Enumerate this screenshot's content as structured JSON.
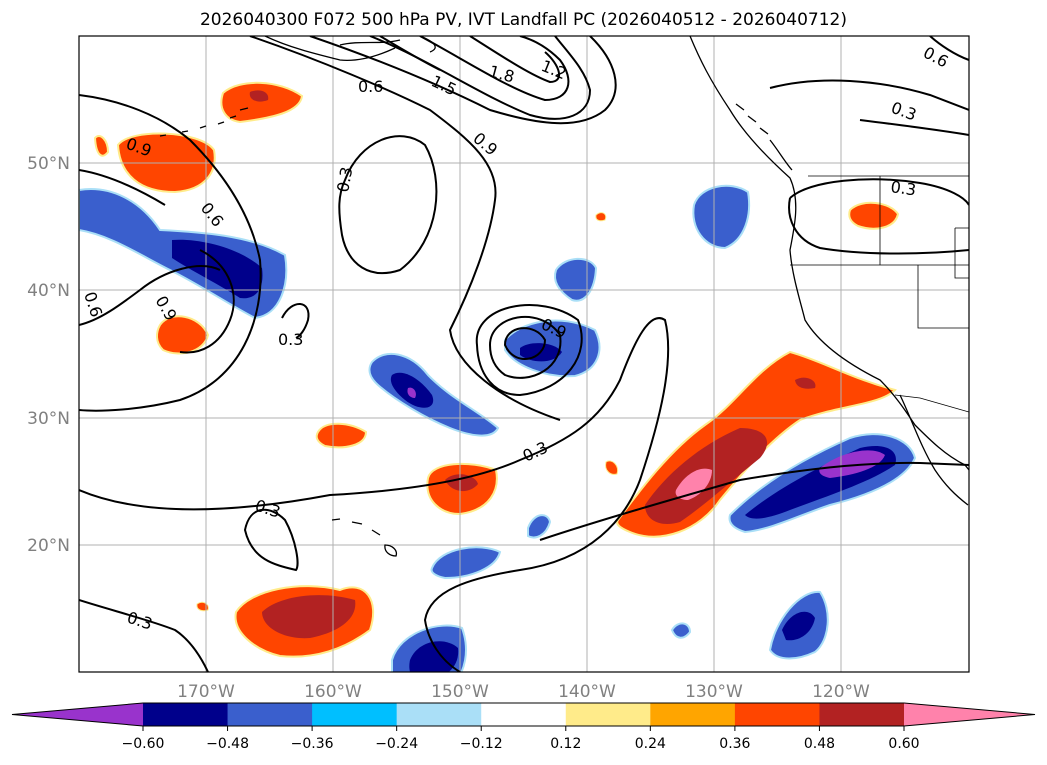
{
  "title": "2026040300 F072 500 hPa PV, IVT Landfall PC (2026040512 - 2026040712)",
  "map": {
    "latitude_labels": [
      "20°N",
      "30°N",
      "40°N",
      "50°N"
    ],
    "longitude_labels": [
      "170°W",
      "160°W",
      "150°W",
      "140°W",
      "130°W",
      "120°W"
    ],
    "contour_labels": [
      "0.9",
      "0.6",
      "1.5",
      "1.8",
      "1.2",
      "0.6",
      "0.9",
      "0.3",
      "0.6",
      "0.3",
      "0.6",
      "0.9",
      "0.3",
      "0.9",
      "0.3",
      "0.3",
      "0.3",
      "0.3"
    ],
    "contour_color": "#000000",
    "grid_color": "#b0b0b0"
  },
  "colorbar": {
    "ticks": [
      "−0.60",
      "−0.48",
      "−0.36",
      "−0.24",
      "−0.12",
      "0.12",
      "0.24",
      "0.36",
      "0.48",
      "0.60"
    ],
    "colors": [
      "#9933cc",
      "#00008b",
      "#3a5fcd",
      "#00bfff",
      "#aadff7",
      "#ffffff",
      "#ffeb8a",
      "#ffa500",
      "#ff4500",
      "#b22222",
      "#ff82ab"
    ]
  }
}
